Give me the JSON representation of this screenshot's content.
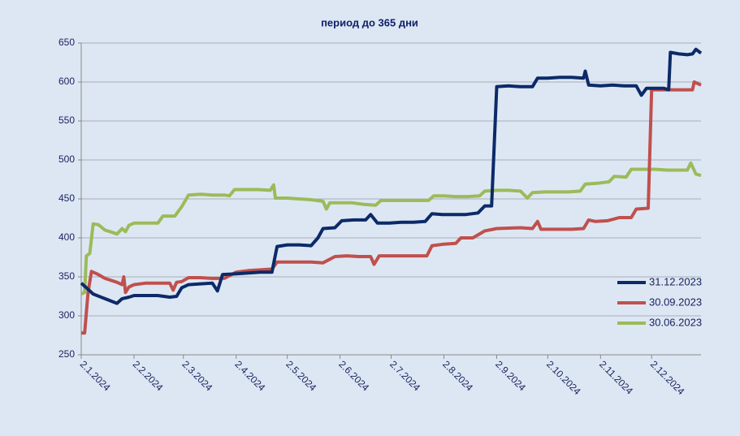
{
  "chart_data": {
    "type": "line",
    "title": "период до 365 дни",
    "xlim": [
      "2.1.2024",
      "31.12.2024"
    ],
    "xticks": [
      "2.1.2024",
      "2.2.2024",
      "2.3.2024",
      "2.4.2024",
      "2.5.2024",
      "2.6.2024",
      "2.7.2024",
      "2.8.2024",
      "2.9.2024",
      "2.10.2024",
      "2.11.2024",
      "2.12.2024"
    ],
    "ylim": [
      250,
      650
    ],
    "yticks": [
      250,
      300,
      350,
      400,
      450,
      500,
      550,
      600,
      650
    ],
    "grid": true,
    "legend": "right",
    "series": [
      {
        "name": "31.12.2023",
        "color": "#0c2a68",
        "x": [
          "2.1.2024",
          "5.1.2024",
          "9.1.2024",
          "16.1.2024",
          "23.1.2024",
          "26.1.2024",
          "30.1.2024",
          "2.2.2024",
          "9.2.2024",
          "16.2.2024",
          "23.2.2024",
          "27.2.2024",
          "1.3.2024",
          "5.3.2024",
          "12.3.2024",
          "19.3.2024",
          "22.3.2024",
          "25.3.2024",
          "2.4.2024",
          "9.4.2024",
          "16.4.2024",
          "23.4.2024",
          "26.4.2024",
          "2.5.2024",
          "9.5.2024",
          "16.5.2024",
          "20.5.2024",
          "23.5.2024",
          "30.5.2024",
          "3.6.2024",
          "10.6.2024",
          "17.6.2024",
          "20.6.2024",
          "24.6.2024",
          "1.7.2024",
          "8.7.2024",
          "15.7.2024",
          "22.7.2024",
          "26.7.2024",
          "1.8.2024",
          "8.8.2024",
          "15.8.2024",
          "22.8.2024",
          "26.8.2024",
          "30.8.2024",
          "2.9.2024",
          "9.9.2024",
          "16.9.2024",
          "23.9.2024",
          "26.9.2024",
          "2.10.2024",
          "9.10.2024",
          "16.10.2024",
          "23.10.2024",
          "24.10.2024",
          "26.10.2024",
          "2.11.2024",
          "9.11.2024",
          "16.11.2024",
          "23.11.2024",
          "26.11.2024",
          "29.11.2024",
          "6.12.2024",
          "9.12.2024",
          "12.12.2024",
          "13.12.2024",
          "18.12.2024",
          "23.12.2024",
          "26.12.2024",
          "28.12.2024",
          "31.12.2024"
        ],
        "values": [
          342,
          336,
          328,
          322,
          316,
          322,
          324,
          326,
          326,
          326,
          324,
          325,
          336,
          340,
          341,
          342,
          332,
          353,
          354,
          355,
          356,
          356,
          389,
          391,
          391,
          390,
          400,
          412,
          413,
          422,
          423,
          423,
          430,
          419,
          419,
          420,
          420,
          421,
          431,
          430,
          430,
          430,
          432,
          441,
          441,
          594,
          595,
          594,
          594,
          605,
          605,
          606,
          606,
          605,
          614,
          596,
          595,
          596,
          595,
          595,
          583,
          592,
          592,
          592,
          590,
          638,
          636,
          635,
          636,
          642,
          637
        ]
      },
      {
        "name": "30.09.2023",
        "color": "#c0504d",
        "x": [
          "2.1.2024",
          "4.1.2024",
          "6.1.2024",
          "8.1.2024",
          "12.1.2024",
          "16.1.2024",
          "23.1.2024",
          "26.1.2024",
          "27.1.2024",
          "28.1.2024",
          "30.1.2024",
          "2.2.2024",
          "9.2.2024",
          "16.2.2024",
          "23.2.2024",
          "25.2.2024",
          "27.2.2024",
          "1.3.2024",
          "5.3.2024",
          "12.3.2024",
          "19.3.2024",
          "26.3.2024",
          "2.4.2024",
          "9.4.2024",
          "16.4.2024",
          "23.4.2024",
          "26.4.2024",
          "2.5.2024",
          "16.5.2024",
          "23.5.2024",
          "30.5.2024",
          "6.6.2024",
          "13.6.2024",
          "20.6.2024",
          "22.6.2024",
          "25.6.2024",
          "2.7.2024",
          "9.7.2024",
          "16.7.2024",
          "23.7.2024",
          "26.7.2024",
          "2.8.2024",
          "9.8.2024",
          "12.8.2024",
          "19.8.2024",
          "26.8.2024",
          "2.9.2024",
          "16.9.2024",
          "23.9.2024",
          "26.9.2024",
          "28.9.2024",
          "2.10.2024",
          "16.10.2024",
          "23.10.2024",
          "26.10.2024",
          "30.10.2024",
          "6.11.2024",
          "13.11.2024",
          "20.11.2024",
          "23.11.2024",
          "30.11.2024",
          "2.12.2024",
          "9.12.2024",
          "16.12.2024",
          "23.12.2024",
          "26.12.2024",
          "27.12.2024",
          "31.12.2024"
        ],
        "values": [
          278,
          278,
          330,
          357,
          353,
          348,
          343,
          340,
          350,
          330,
          337,
          340,
          342,
          342,
          342,
          333,
          343,
          344,
          349,
          349,
          348,
          348,
          356,
          358,
          359,
          360,
          369,
          369,
          369,
          368,
          376,
          377,
          376,
          376,
          366,
          377,
          377,
          377,
          377,
          377,
          390,
          392,
          393,
          400,
          400,
          409,
          412,
          413,
          412,
          421,
          411,
          411,
          411,
          412,
          423,
          421,
          422,
          426,
          426,
          437,
          438,
          590,
          590,
          590,
          590,
          590,
          600,
          596
        ]
      },
      {
        "name": "30.06.2023",
        "color": "#9bbb59",
        "x": [
          "2.1.2024",
          "4.1.2024",
          "5.1.2024",
          "7.1.2024",
          "9.1.2024",
          "12.1.2024",
          "16.1.2024",
          "19.1.2024",
          "23.1.2024",
          "26.1.2024",
          "28.1.2024",
          "30.1.2024",
          "2.2.2024",
          "9.2.2024",
          "16.2.2024",
          "19.2.2024",
          "26.2.2024",
          "1.3.2024",
          "5.3.2024",
          "12.3.2024",
          "19.3.2024",
          "26.3.2024",
          "29.3.2024",
          "1.4.2024",
          "8.4.2024",
          "15.4.2024",
          "22.4.2024",
          "24.4.2024",
          "25.4.2024",
          "2.5.2024",
          "9.5.2024",
          "16.5.2024",
          "23.5.2024",
          "25.5.2024",
          "27.5.2024",
          "2.6.2024",
          "9.6.2024",
          "16.6.2024",
          "23.6.2024",
          "26.6.2024",
          "3.7.2024",
          "10.7.2024",
          "17.7.2024",
          "24.7.2024",
          "27.7.2024",
          "2.8.2024",
          "9.8.2024",
          "16.8.2024",
          "23.8.2024",
          "26.8.2024",
          "2.9.2024",
          "9.9.2024",
          "16.9.2024",
          "20.9.2024",
          "23.9.2024",
          "30.9.2024",
          "7.10.2024",
          "14.10.2024",
          "21.10.2024",
          "24.10.2024",
          "31.10.2024",
          "7.11.2024",
          "10.11.2024",
          "17.11.2024",
          "20.11.2024",
          "27.11.2024",
          "4.12.2024",
          "11.12.2024",
          "18.12.2024",
          "23.12.2024",
          "25.12.2024",
          "28.12.2024",
          "31.12.2024"
        ],
        "values": [
          328,
          330,
          377,
          380,
          418,
          417,
          410,
          408,
          405,
          412,
          408,
          416,
          419,
          419,
          419,
          428,
          428,
          440,
          455,
          456,
          455,
          455,
          454,
          462,
          462,
          462,
          461,
          468,
          451,
          451,
          450,
          449,
          447,
          437,
          445,
          445,
          445,
          443,
          442,
          448,
          448,
          448,
          448,
          448,
          454,
          454,
          453,
          453,
          454,
          460,
          461,
          461,
          460,
          451,
          458,
          459,
          459,
          459,
          460,
          469,
          470,
          472,
          479,
          478,
          488,
          488,
          488,
          487,
          487,
          487,
          496,
          482,
          480
        ]
      }
    ]
  }
}
